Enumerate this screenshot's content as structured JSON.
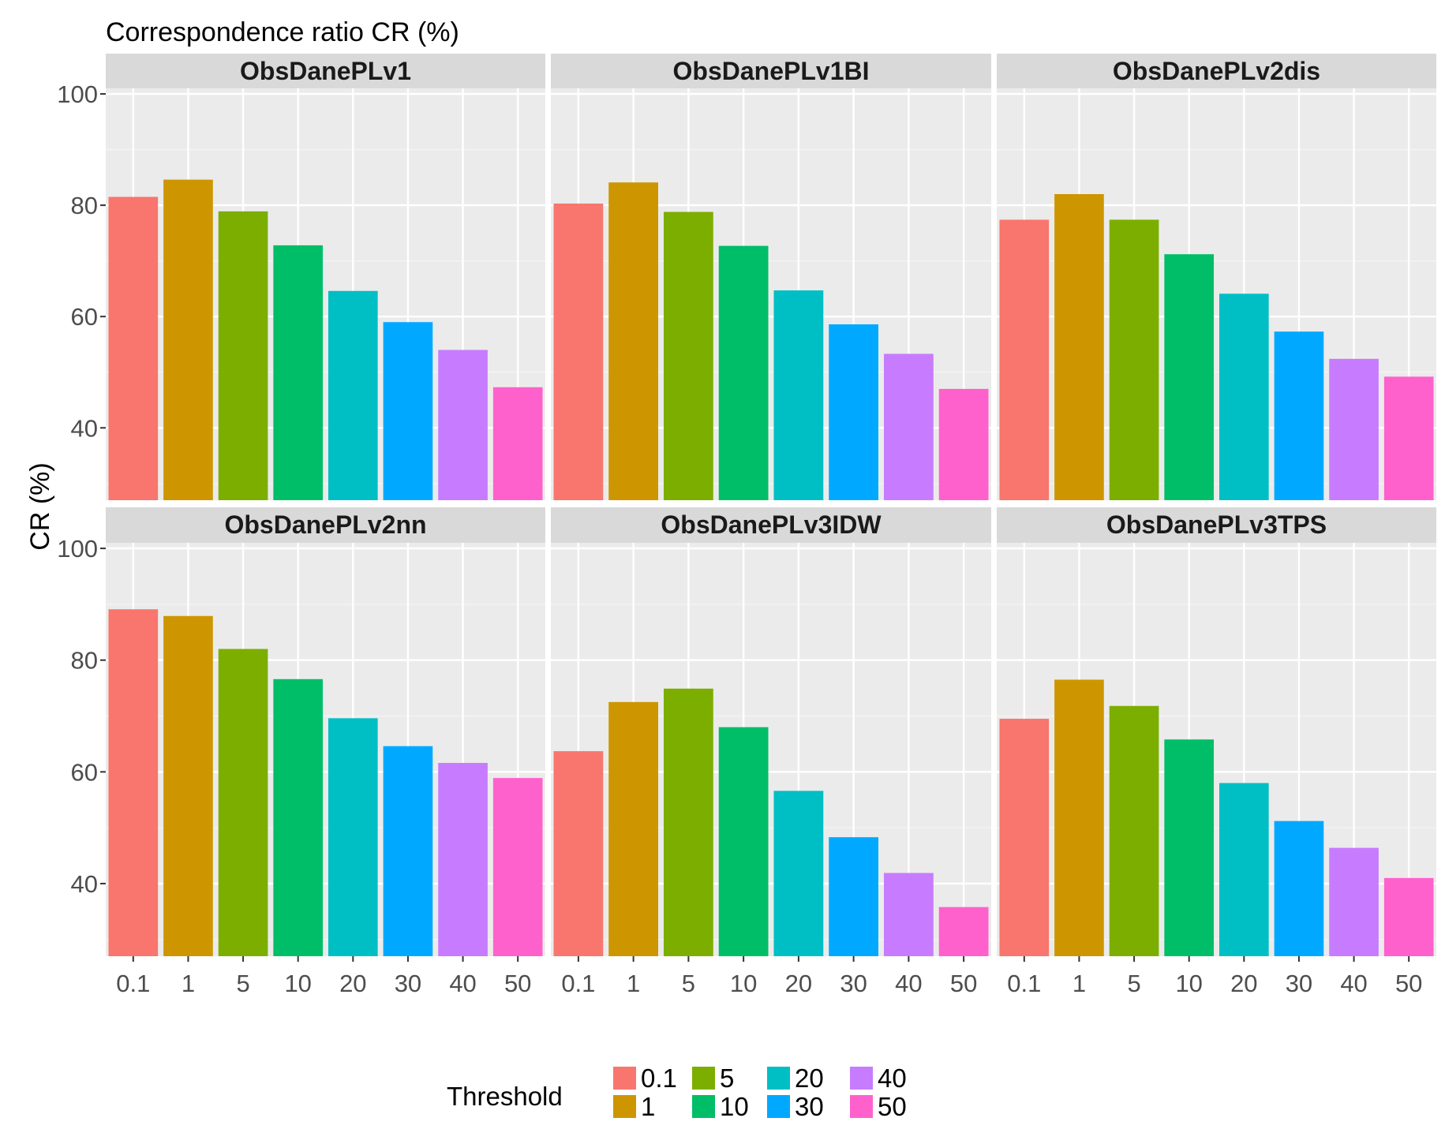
{
  "chart_data": {
    "type": "bar",
    "title": "Correspondence ratio CR (%)",
    "ylabel": "CR (%)",
    "xlabel": "",
    "ylim": [
      27,
      101
    ],
    "yticks": [
      40,
      60,
      80,
      100
    ],
    "categories": [
      "0.1",
      "1",
      "5",
      "10",
      "20",
      "30",
      "40",
      "50"
    ],
    "legend": {
      "title": "Threshold",
      "position": "bottom",
      "entries": [
        "0.1",
        "1",
        "5",
        "10",
        "20",
        "30",
        "40",
        "50"
      ]
    },
    "colors": [
      "#F8766D",
      "#CD9600",
      "#7CAE00",
      "#00BE67",
      "#00BFC4",
      "#00A9FF",
      "#C77CFF",
      "#FF61CC"
    ],
    "panels": [
      {
        "name": "ObsDanePLv1",
        "values": [
          81.5,
          84.6,
          78.9,
          72.8,
          64.6,
          59.0,
          54.0,
          47.3
        ]
      },
      {
        "name": "ObsDanePLv1BI",
        "values": [
          80.3,
          84.1,
          78.8,
          72.7,
          64.7,
          58.6,
          53.3,
          47.0
        ]
      },
      {
        "name": "ObsDanePLv2dis",
        "values": [
          77.4,
          82.0,
          77.4,
          71.2,
          64.1,
          57.3,
          52.4,
          49.2
        ]
      },
      {
        "name": "ObsDanePLv2nn",
        "values": [
          89.1,
          87.9,
          82.0,
          76.6,
          69.6,
          64.6,
          61.6,
          58.9
        ]
      },
      {
        "name": "ObsDanePLv3IDW",
        "values": [
          63.7,
          72.5,
          74.9,
          68.0,
          56.6,
          48.3,
          41.9,
          35.8
        ]
      },
      {
        "name": "ObsDanePLv3TPS",
        "values": [
          69.5,
          76.5,
          71.8,
          65.8,
          58.0,
          51.2,
          46.4,
          41.0
        ]
      }
    ]
  }
}
